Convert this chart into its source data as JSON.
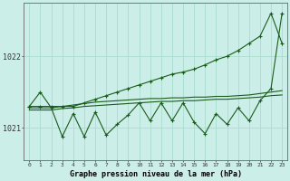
{
  "background_color": "#cceee8",
  "grid_color": "#aaddcc",
  "line_color": "#1a5c1a",
  "title": "Graphe pression niveau de la mer (hPa)",
  "xlim": [
    -0.5,
    23.5
  ],
  "ylim": [
    1020.55,
    1022.75
  ],
  "yticks": [
    1021,
    1022
  ],
  "xticks": [
    0,
    1,
    2,
    3,
    4,
    5,
    6,
    7,
    8,
    9,
    10,
    11,
    12,
    13,
    14,
    15,
    16,
    17,
    18,
    19,
    20,
    21,
    22,
    23
  ],
  "series": {
    "zigzag": [
      1021.3,
      1021.5,
      1021.28,
      1020.88,
      1021.2,
      1020.88,
      1021.22,
      1020.9,
      1021.05,
      1021.18,
      1021.35,
      1021.1,
      1021.35,
      1021.1,
      1021.35,
      1021.08,
      1020.92,
      1021.2,
      1021.05,
      1021.28,
      1021.1,
      1021.38,
      1021.55,
      1022.6
    ],
    "big_rise": [
      1021.3,
      1021.3,
      1021.3,
      1021.3,
      1021.3,
      1021.35,
      1021.4,
      1021.45,
      1021.5,
      1021.55,
      1021.6,
      1021.65,
      1021.7,
      1021.75,
      1021.78,
      1021.82,
      1021.88,
      1021.95,
      1022.0,
      1022.08,
      1022.18,
      1022.28,
      1022.6,
      1022.18
    ],
    "flat1": [
      1021.28,
      1021.28,
      1021.28,
      1021.3,
      1021.32,
      1021.34,
      1021.36,
      1021.37,
      1021.38,
      1021.39,
      1021.4,
      1021.41,
      1021.41,
      1021.42,
      1021.42,
      1021.43,
      1021.43,
      1021.44,
      1021.44,
      1021.45,
      1021.46,
      1021.48,
      1021.5,
      1021.52
    ],
    "flat2": [
      1021.25,
      1021.25,
      1021.25,
      1021.27,
      1021.28,
      1021.3,
      1021.31,
      1021.32,
      1021.33,
      1021.34,
      1021.35,
      1021.36,
      1021.37,
      1021.37,
      1021.38,
      1021.38,
      1021.39,
      1021.4,
      1021.4,
      1021.41,
      1021.42,
      1021.43,
      1021.45,
      1021.46
    ]
  }
}
